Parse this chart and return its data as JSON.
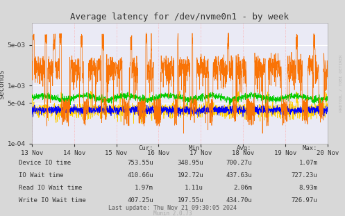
{
  "title": "Average latency for /dev/nvme0n1 - by week",
  "ylabel": "seconds",
  "background_color": "#d8d8d8",
  "plot_bg_color": "#eaeaf5",
  "xmin": 1731456000,
  "xmax": 1732060800,
  "ymin": 0.0001,
  "ymax": 0.012,
  "xtick_labels": [
    "13 Nov",
    "14 Nov",
    "15 Nov",
    "16 Nov",
    "17 Nov",
    "18 Nov",
    "19 Nov",
    "20 Nov"
  ],
  "xtick_positions": [
    1731456000,
    1731542400,
    1731628800,
    1731715200,
    1731801600,
    1731888000,
    1731974400,
    1732060800
  ],
  "legend": [
    {
      "label": "Device IO time",
      "color": "#00cc00"
    },
    {
      "label": "IO Wait time",
      "color": "#0000ff"
    },
    {
      "label": "Read IO Wait time",
      "color": "#f97306"
    },
    {
      "label": "Write IO Wait time",
      "color": "#ffcc00"
    }
  ],
  "stats_header": [
    "Cur:",
    "Min:",
    "Avg:",
    "Max:"
  ],
  "stats_rows": [
    [
      "Device IO time",
      "753.55u",
      "348.95u",
      "700.27u",
      "1.07m"
    ],
    [
      "IO Wait time",
      "410.66u",
      "192.72u",
      "437.63u",
      "727.23u"
    ],
    [
      "Read IO Wait time",
      "1.97m",
      "1.11u",
      "2.06m",
      "8.93m"
    ],
    [
      "Write IO Wait time",
      "407.25u",
      "197.55u",
      "434.70u",
      "726.97u"
    ]
  ],
  "footer": "Last update: Thu Nov 21 09:30:05 2024",
  "munin_version": "Munin 2.0.73",
  "rrdtool_label": "RRDTOOL / TOBI OETIKER"
}
